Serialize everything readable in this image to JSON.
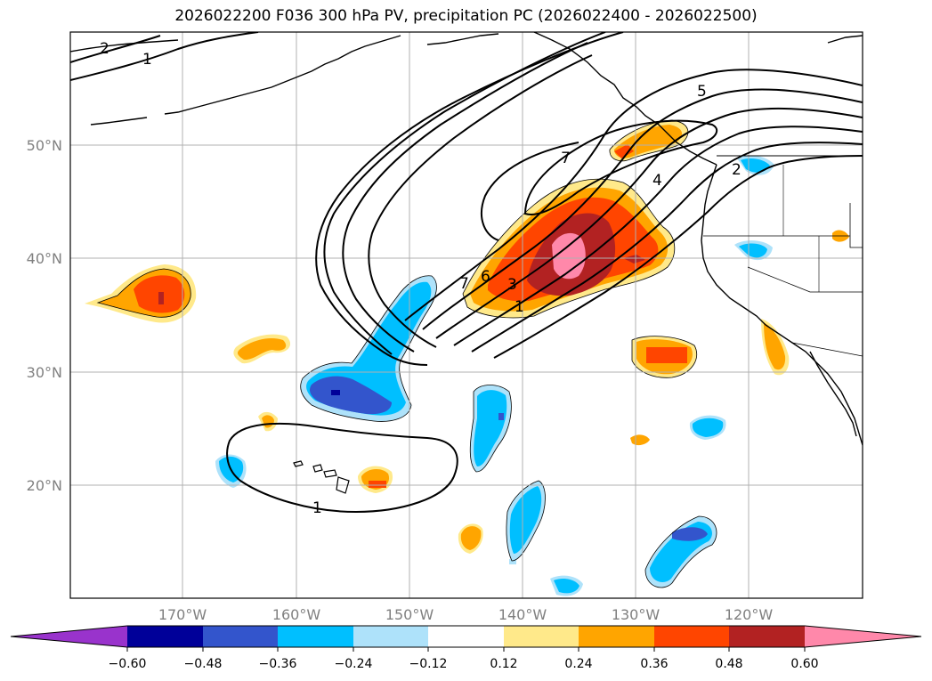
{
  "title": "2026022200 F036 300 hPa PV, precipitation PC (2026022400 - 2026022500)",
  "lat_labels": [
    "50°N",
    "40°N",
    "30°N",
    "20°N"
  ],
  "lon_labels": [
    "170°W",
    "160°W",
    "150°W",
    "140°W",
    "130°W",
    "120°W"
  ],
  "colorbar": {
    "ticks": [
      "−0.60",
      "−0.48",
      "−0.36",
      "−0.24",
      "−0.12",
      "0.12",
      "0.24",
      "0.36",
      "0.48",
      "0.60"
    ],
    "colors": [
      "#9933cc",
      "#000099",
      "#3355cc",
      "#00bfff",
      "#aee2fa",
      "#ffffff",
      "#ffe98a",
      "#ffa500",
      "#ff4500",
      "#b22222",
      "#ff88aa"
    ]
  },
  "contour_labels": [
    "2",
    "1",
    "5",
    "7",
    "4",
    "2",
    "7",
    "6",
    "3",
    "1",
    "1"
  ]
}
